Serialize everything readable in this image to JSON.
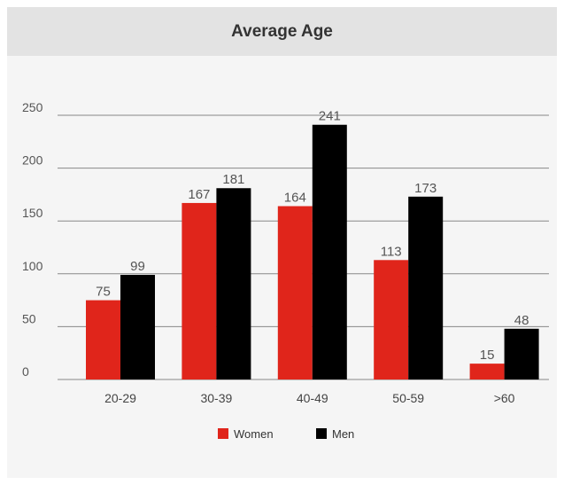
{
  "header": {
    "title": "Average Age"
  },
  "colors": {
    "women": "#e0251b",
    "men": "#000000",
    "grid": "#888888",
    "header_bg": "#e3e3e3",
    "card_bg": "#f5f5f5"
  },
  "chart_data": {
    "type": "bar",
    "title": "Average Age",
    "categories": [
      "20-29",
      "30-39",
      "40-49",
      "50-59",
      ">60"
    ],
    "series": [
      {
        "name": "Women",
        "values": [
          75,
          167,
          164,
          113,
          15
        ],
        "color": "#e0251b"
      },
      {
        "name": "Men",
        "values": [
          99,
          181,
          241,
          173,
          48
        ],
        "color": "#000000"
      }
    ],
    "ylim": [
      0,
      250
    ],
    "yticks": [
      0,
      50,
      100,
      150,
      200,
      250
    ],
    "grid": true,
    "legend_position": "bottom-center"
  }
}
